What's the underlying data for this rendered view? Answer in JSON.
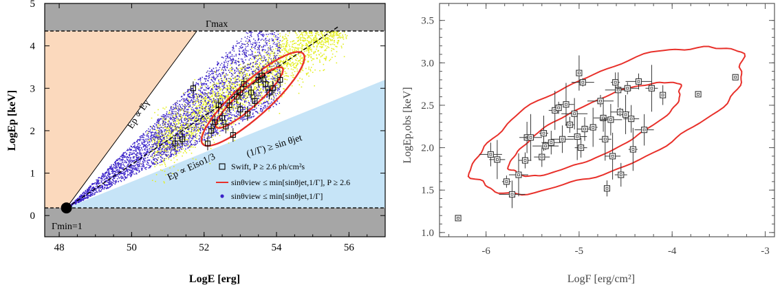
{
  "chart_data": [
    {
      "type": "scatter",
      "xlabel": "LogE [erg]",
      "ylabel": "LogEp [keV]",
      "xlim": [
        47.6,
        57.0
      ],
      "ylim": [
        -0.5,
        5.0
      ],
      "xticks": [
        "48",
        "50",
        "52",
        "54",
        "56"
      ],
      "yticks": [
        "0",
        "1",
        "2",
        "3",
        "4",
        "5"
      ],
      "annotations": {
        "gamma_max": "Γmax",
        "gamma_min": "Γmin=1",
        "ep_egamma": "Ep ∝ Eγ",
        "ep_eiso": "Ep ∝ Eiso1/3",
        "one_over_gamma": "(1/Γ) ≥ sin θjet"
      },
      "gamma_max_level": 4.35,
      "gamma_min_level": 0.18,
      "gamma_min_point": [
        48.2,
        0.18
      ],
      "legend": {
        "placement": "bottom-right",
        "items": [
          {
            "label": "Swift, P ≥ 2.6 ph/cm²s",
            "marker": "open-square",
            "color": "#000000"
          },
          {
            "label": "sinθview ≤ min[sinθjet,1/Γ], P ≥ 2.6",
            "marker": "line",
            "color": "#e8302a"
          },
          {
            "label": "sinθview ≤ min[sinθjet,1/Γ]",
            "marker": "dot",
            "color": "#3a22c8"
          }
        ]
      },
      "swift_points": [
        [
          51.7,
          3.0
        ],
        [
          52.5,
          2.3
        ],
        [
          52.7,
          2.6
        ],
        [
          52.9,
          2.8
        ],
        [
          53.1,
          3.1
        ],
        [
          53.3,
          2.9
        ],
        [
          53.5,
          3.2
        ],
        [
          53.7,
          3.1
        ],
        [
          53.9,
          3.0
        ],
        [
          54.1,
          3.2
        ],
        [
          52.3,
          2.2
        ],
        [
          52.6,
          2.1
        ],
        [
          53.0,
          2.5
        ],
        [
          53.4,
          2.7
        ],
        [
          53.2,
          2.4
        ],
        [
          52.8,
          1.9
        ],
        [
          51.4,
          1.8
        ],
        [
          52.1,
          1.7
        ],
        [
          53.6,
          3.3
        ],
        [
          52.4,
          2.6
        ],
        [
          53.8,
          2.9
        ],
        [
          52.2,
          2.0
        ],
        [
          51.2,
          1.7
        ],
        [
          53.0,
          2.9
        ]
      ],
      "colors": {
        "gray_band": "#a6a6a6",
        "peach": "#fbd9bd",
        "blue_region": "#c6e4f7",
        "yellow": "#e3ef22",
        "purple": "#3a22c8",
        "contour": "#e8302a"
      }
    },
    {
      "type": "scatter",
      "xlabel": "LogF [erg/cm²]",
      "ylabel": "LogEp,obs [keV]",
      "xlim": [
        -6.5,
        -2.9
      ],
      "ylim": [
        0.95,
        3.7
      ],
      "xticks": [
        "-6",
        "-5",
        "-4",
        "-3"
      ],
      "yticks": [
        "1.0",
        "1.5",
        "2.0",
        "2.5",
        "3.0",
        "3.5"
      ],
      "points": [
        [
          -6.3,
          1.17
        ],
        [
          -5.95,
          1.92
        ],
        [
          -5.88,
          1.86
        ],
        [
          -5.78,
          1.6
        ],
        [
          -5.72,
          1.45
        ],
        [
          -5.65,
          1.68
        ],
        [
          -5.58,
          1.85
        ],
        [
          -5.56,
          2.12
        ],
        [
          -5.52,
          2.12
        ],
        [
          -5.4,
          1.89
        ],
        [
          -5.38,
          2.17
        ],
        [
          -5.36,
          2.02
        ],
        [
          -5.3,
          2.06
        ],
        [
          -5.26,
          2.44
        ],
        [
          -5.22,
          2.47
        ],
        [
          -5.18,
          2.1
        ],
        [
          -5.14,
          2.51
        ],
        [
          -5.1,
          2.27
        ],
        [
          -5.05,
          2.4
        ],
        [
          -5.02,
          2.13
        ],
        [
          -4.98,
          2.0
        ],
        [
          -5.0,
          2.88
        ],
        [
          -4.96,
          2.77
        ],
        [
          -4.94,
          2.22
        ],
        [
          -4.85,
          2.24
        ],
        [
          -4.77,
          2.55
        ],
        [
          -4.74,
          2.35
        ],
        [
          -4.72,
          2.1
        ],
        [
          -4.7,
          1.52
        ],
        [
          -4.66,
          2.33
        ],
        [
          -4.64,
          1.9
        ],
        [
          -4.61,
          2.77
        ],
        [
          -4.58,
          2.68
        ],
        [
          -4.56,
          2.42
        ],
        [
          -4.55,
          1.68
        ],
        [
          -4.5,
          2.39
        ],
        [
          -4.48,
          2.7
        ],
        [
          -4.44,
          2.34
        ],
        [
          -4.42,
          1.98
        ],
        [
          -4.36,
          2.78
        ],
        [
          -4.3,
          2.21
        ],
        [
          -4.22,
          2.7
        ],
        [
          -4.1,
          2.62
        ],
        [
          -3.72,
          2.63
        ],
        [
          -3.32,
          2.83
        ]
      ],
      "colors": {
        "marker": "#333333",
        "contour": "#e8302a"
      }
    }
  ]
}
